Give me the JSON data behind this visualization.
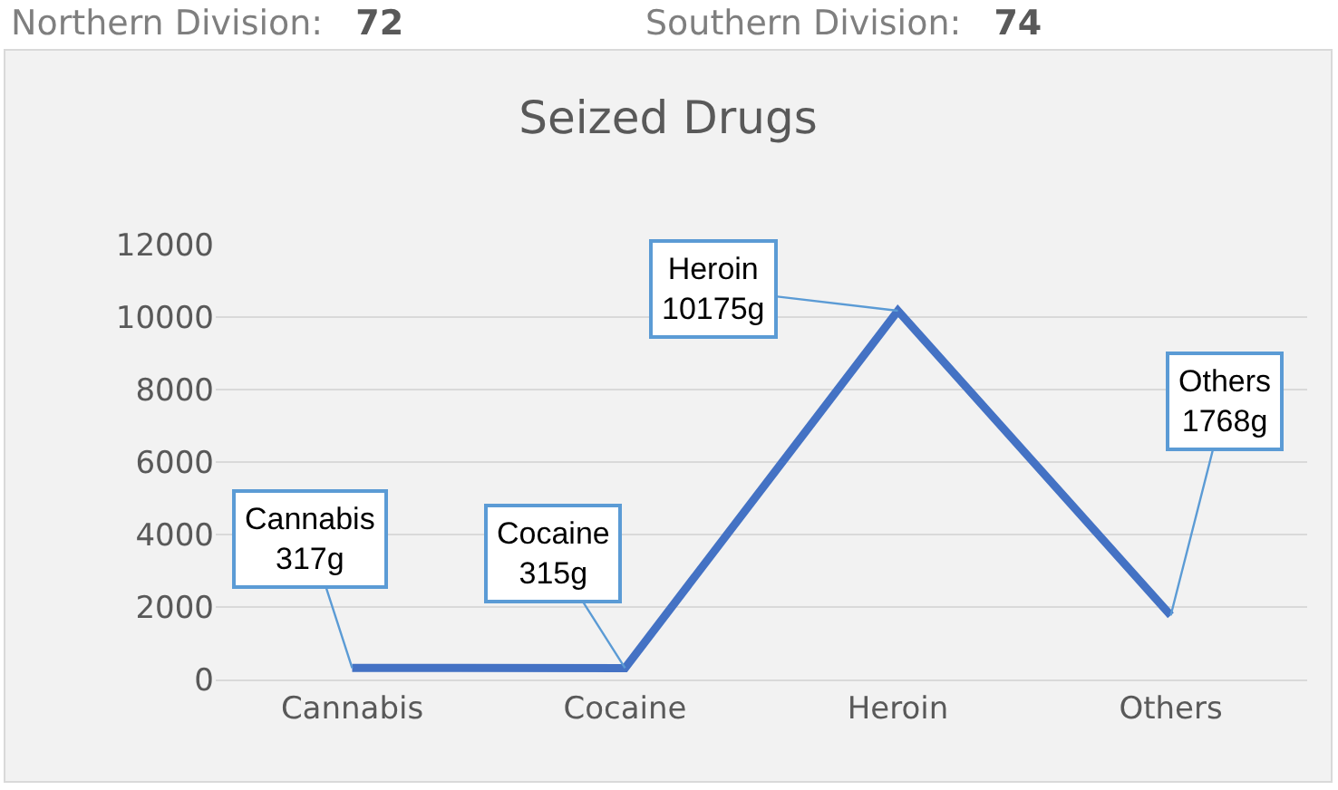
{
  "chart_data": {
    "type": "line",
    "title": "Seized Drugs",
    "categories": [
      "Cannabis",
      "Cocaine",
      "Heroin",
      "Others"
    ],
    "series": [
      {
        "color": "#4472c4",
        "values": [
          317,
          315,
          10175,
          1768
        ],
        "value_labels": [
          "Cannabis\n317g",
          "Cocaine\n315g",
          "Heroin\n10175g",
          "Others\n1768g"
        ]
      }
    ],
    "ylim": [
      0,
      12000
    ],
    "yticks": [
      0,
      2000,
      4000,
      6000,
      8000,
      10000,
      12000
    ],
    "grid": "y",
    "legend": false,
    "marker": "none",
    "line_style": "solid",
    "annotations": [
      "Northern Division: 72",
      "Southern Division: 74"
    ]
  }
}
